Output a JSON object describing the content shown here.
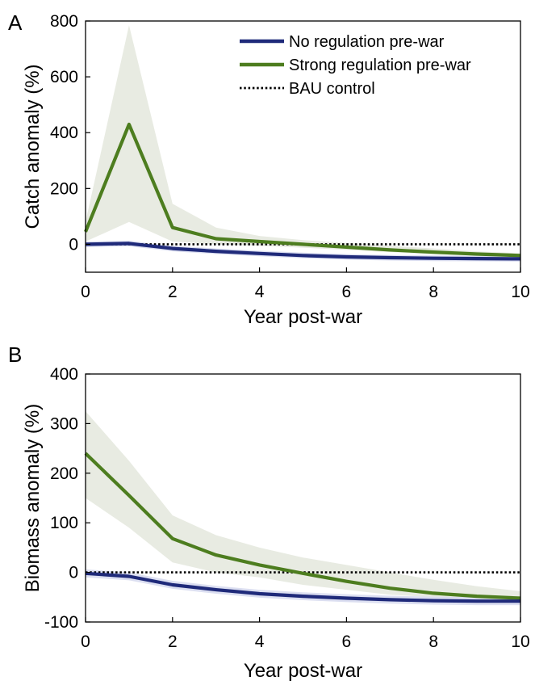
{
  "colors": {
    "no_regulation": "#1f2a7a",
    "strong_regulation": "#4d7d1f",
    "bau": "#000000",
    "band_strong": "#e8ebe2",
    "band_none": "#d6d9ef"
  },
  "chart_data": [
    {
      "panel": "A",
      "type": "line",
      "xlabel": "Year post-war",
      "ylabel": "Catch anomaly (%)",
      "xlim": [
        0,
        10
      ],
      "ylim": [
        -100,
        800
      ],
      "xticks": [
        0,
        2,
        4,
        6,
        8,
        10
      ],
      "yticks": [
        0,
        200,
        400,
        600,
        800
      ],
      "x": [
        0,
        1,
        2,
        3,
        4,
        5,
        6,
        7,
        8,
        9,
        10
      ],
      "series": [
        {
          "name": "No regulation pre-war",
          "values": [
            0,
            3,
            -15,
            -25,
            -33,
            -40,
            -45,
            -48,
            -50,
            -51,
            -52
          ],
          "lower": [
            -10,
            -7,
            -25,
            -35,
            -43,
            -50,
            -55,
            -58,
            -60,
            -61,
            -62
          ],
          "upper": [
            10,
            13,
            -5,
            -15,
            -23,
            -30,
            -35,
            -38,
            -40,
            -41,
            -42
          ]
        },
        {
          "name": "Strong regulation pre-war",
          "values": [
            45,
            430,
            60,
            20,
            10,
            0,
            -10,
            -20,
            -28,
            -35,
            -40
          ],
          "lower": [
            10,
            80,
            10,
            0,
            -5,
            -12,
            -20,
            -28,
            -35,
            -40,
            -45
          ],
          "upper": [
            80,
            785,
            145,
            60,
            30,
            15,
            5,
            -5,
            -15,
            -25,
            -32
          ]
        },
        {
          "name": "BAU control",
          "values": [
            0,
            0,
            0,
            0,
            0,
            0,
            0,
            0,
            0,
            0,
            0
          ]
        }
      ],
      "legend_position": "top-right"
    },
    {
      "panel": "B",
      "type": "line",
      "xlabel": "Year post-war",
      "ylabel": "Biomass anomaly (%)",
      "xlim": [
        0,
        10
      ],
      "ylim": [
        -100,
        400
      ],
      "xticks": [
        0,
        2,
        4,
        6,
        8,
        10
      ],
      "yticks": [
        -100,
        0,
        100,
        200,
        300,
        400
      ],
      "x": [
        0,
        1,
        2,
        3,
        4,
        5,
        6,
        7,
        8,
        9,
        10
      ],
      "series": [
        {
          "name": "No regulation pre-war",
          "values": [
            -2,
            -8,
            -25,
            -35,
            -43,
            -48,
            -52,
            -55,
            -57,
            -58,
            -58
          ],
          "lower": [
            -10,
            -16,
            -33,
            -43,
            -51,
            -56,
            -60,
            -63,
            -65,
            -66,
            -66
          ],
          "upper": [
            6,
            0,
            -17,
            -27,
            -35,
            -40,
            -44,
            -47,
            -49,
            -50,
            -50
          ]
        },
        {
          "name": "Strong regulation pre-war",
          "values": [
            240,
            155,
            68,
            35,
            15,
            -2,
            -18,
            -32,
            -42,
            -48,
            -52
          ],
          "lower": [
            150,
            90,
            20,
            0,
            -10,
            -25,
            -35,
            -45,
            -50,
            -55,
            -58
          ],
          "upper": [
            325,
            225,
            115,
            75,
            50,
            30,
            15,
            0,
            -15,
            -28,
            -38
          ]
        },
        {
          "name": "BAU control",
          "values": [
            0,
            0,
            0,
            0,
            0,
            0,
            0,
            0,
            0,
            0,
            0
          ]
        }
      ]
    }
  ]
}
